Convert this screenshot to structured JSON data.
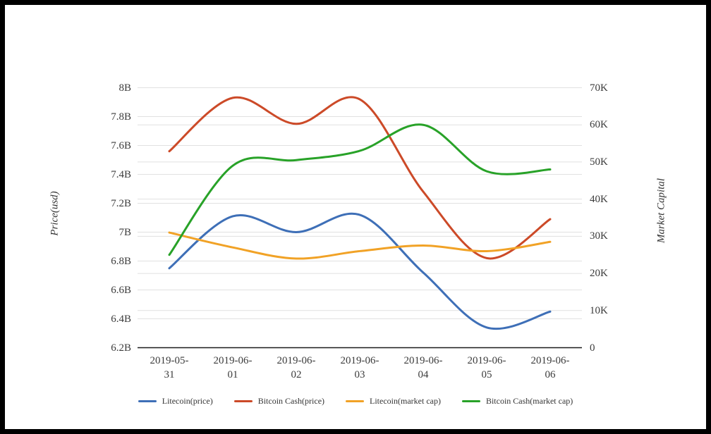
{
  "chart_data": {
    "type": "line",
    "smooth": true,
    "grid": true,
    "legend_position": "bottom",
    "x_categories": [
      "2019-05-31",
      "2019-06-01",
      "2019-06-02",
      "2019-06-03",
      "2019-06-04",
      "2019-06-05",
      "2019-06-06"
    ],
    "left_axis": {
      "title": "Price(usd)",
      "unit": "B",
      "min": 6.2,
      "max": 8.0,
      "tick_step": 0.2,
      "tick_labels": [
        "8B",
        "7.8B",
        "7.6B",
        "7.4B",
        "7.2B",
        "7B",
        "6.8B",
        "6.6B",
        "6.4B",
        "6.2B"
      ]
    },
    "right_axis": {
      "title": "Market Capital",
      "unit": "K",
      "min": 0,
      "max": 70,
      "tick_step": 10,
      "tick_labels": [
        "70K",
        "60K",
        "50K",
        "40K",
        "30K",
        "20K",
        "10K",
        "0"
      ]
    },
    "series": [
      {
        "name": "Litecoin(price)",
        "axis": "left",
        "color": "#3E6FB7",
        "values": [
          6.75,
          7.11,
          7.0,
          7.12,
          6.72,
          6.34,
          6.45
        ]
      },
      {
        "name": "Bitcoin Cash(price)",
        "axis": "left",
        "color": "#CC4A28",
        "values": [
          7.56,
          7.93,
          7.75,
          7.92,
          7.28,
          6.82,
          7.09
        ]
      },
      {
        "name": "Litecoin(market cap)",
        "axis": "right",
        "color": "#F1A226",
        "values": [
          31,
          27,
          24,
          26,
          27.5,
          26,
          28.5
        ]
      },
      {
        "name": "Bitcoin Cash(market cap)",
        "axis": "right",
        "color": "#28A228",
        "values": [
          25,
          49,
          50.5,
          53,
          60,
          47.5,
          48
        ]
      }
    ]
  },
  "styles": {
    "background": "#ffffff",
    "frame_border": "#000000",
    "grid_color": "#e1e1e1",
    "axis_line_color": "#1a1a1a",
    "tick_text_color": "#3b3b3b",
    "axis_title_color": "#333333",
    "legend_text_color": "#333333"
  }
}
